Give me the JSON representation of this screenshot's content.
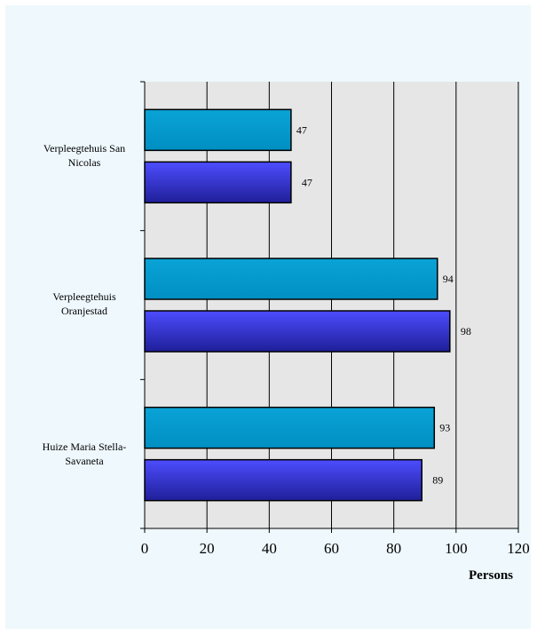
{
  "chart_data": {
    "type": "bar",
    "orientation": "horizontal",
    "categories": [
      "Verpleegtehuis San Nicolas",
      "Verpleegtehuis Oranjestad",
      "Huize Maria Stella-Savaneta"
    ],
    "category_lines": [
      [
        "Verpleegtehuis San",
        "Nicolas"
      ],
      [
        "Verpleegtehuis",
        "Oranjestad"
      ],
      [
        "Huize Maria Stella-",
        "Savaneta"
      ]
    ],
    "series": [
      {
        "color": "#0099cc",
        "values": [
          47,
          94,
          93
        ]
      },
      {
        "color": "#3333cc",
        "values": [
          47,
          98,
          89
        ]
      }
    ],
    "x_ticks": [
      "0",
      "20",
      "40",
      "60",
      "80",
      "100",
      "120"
    ],
    "xlim": [
      0,
      120
    ],
    "xlabel": "Persons",
    "grid": true,
    "plot_background": "#e6e6e6"
  }
}
